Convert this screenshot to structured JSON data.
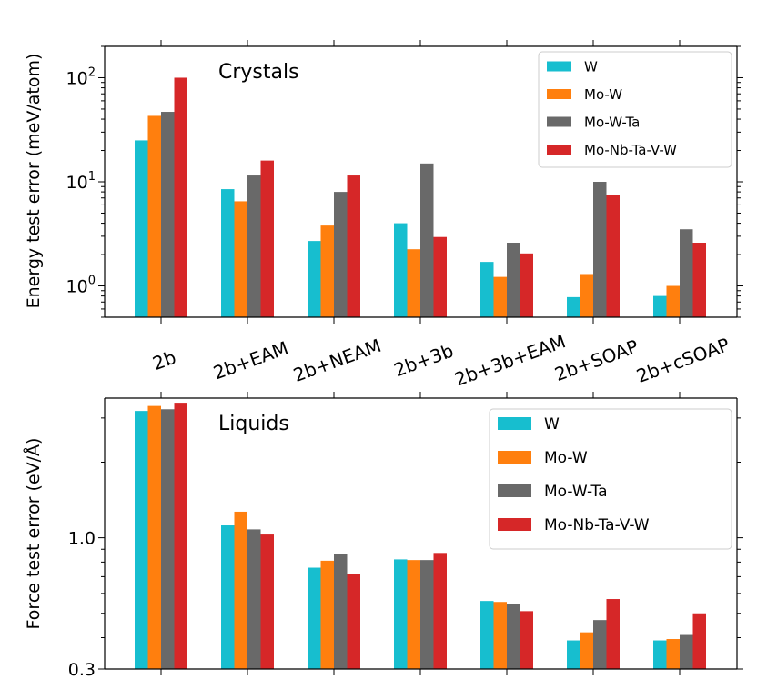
{
  "chart_data": [
    {
      "type": "bar",
      "yscale": "log",
      "annotation": "Crystals",
      "ylabel": "Energy test error (meV/atom)",
      "ylim": [
        0.5,
        200
      ],
      "yticks": [
        {
          "value": 1,
          "base": "10",
          "exp": "0"
        },
        {
          "value": 10,
          "base": "10",
          "exp": "1"
        },
        {
          "value": 100,
          "base": "10",
          "exp": "2"
        }
      ],
      "categories": [
        "2b",
        "2b+EAM",
        "2b+NEAM",
        "2b+3b",
        "2b+3b+EAM",
        "2b+SOAP",
        "2b+cSOAP"
      ],
      "legend_position": "top-right",
      "series": [
        {
          "name": "W",
          "color": "#17becf",
          "values": [
            25,
            8.5,
            2.7,
            4.0,
            1.7,
            0.78,
            0.8
          ]
        },
        {
          "name": "Mo-W",
          "color": "#ff7f0e",
          "values": [
            43,
            6.5,
            3.8,
            2.25,
            1.22,
            1.3,
            1.0
          ]
        },
        {
          "name": "Mo-W-Ta",
          "color": "#696969",
          "values": [
            47,
            11.5,
            8.0,
            15,
            2.6,
            10,
            3.5
          ]
        },
        {
          "name": "Mo-Nb-Ta-V-W",
          "color": "#d62728",
          "values": [
            100,
            16,
            11.5,
            2.95,
            2.05,
            7.4,
            2.6
          ]
        }
      ]
    },
    {
      "type": "bar",
      "yscale": "log",
      "annotation": "Liquids",
      "ylabel": "Force test error (eV/Å)",
      "ylim": [
        0.3,
        3.6
      ],
      "yticks": [
        {
          "value": 0.3,
          "label": "0.3"
        },
        {
          "value": 1.0,
          "label": "1.0"
        }
      ],
      "categories": [
        "2b",
        "2b+EAM",
        "2b+NEAM",
        "2b+3b",
        "2b+3b+EAM",
        "2b+SOAP",
        "2b+cSOAP"
      ],
      "legend_position": "top-right",
      "series": [
        {
          "name": "W",
          "color": "#17becf",
          "values": [
            3.2,
            1.12,
            0.76,
            0.82,
            0.56,
            0.39,
            0.39
          ]
        },
        {
          "name": "Mo-W",
          "color": "#ff7f0e",
          "values": [
            3.35,
            1.27,
            0.81,
            0.815,
            0.555,
            0.42,
            0.395
          ]
        },
        {
          "name": "Mo-W-Ta",
          "color": "#696969",
          "values": [
            3.25,
            1.08,
            0.86,
            0.815,
            0.545,
            0.47,
            0.41
          ]
        },
        {
          "name": "Mo-Nb-Ta-V-W",
          "color": "#d62728",
          "values": [
            3.45,
            1.03,
            0.72,
            0.87,
            0.51,
            0.57,
            0.5
          ]
        }
      ]
    }
  ]
}
